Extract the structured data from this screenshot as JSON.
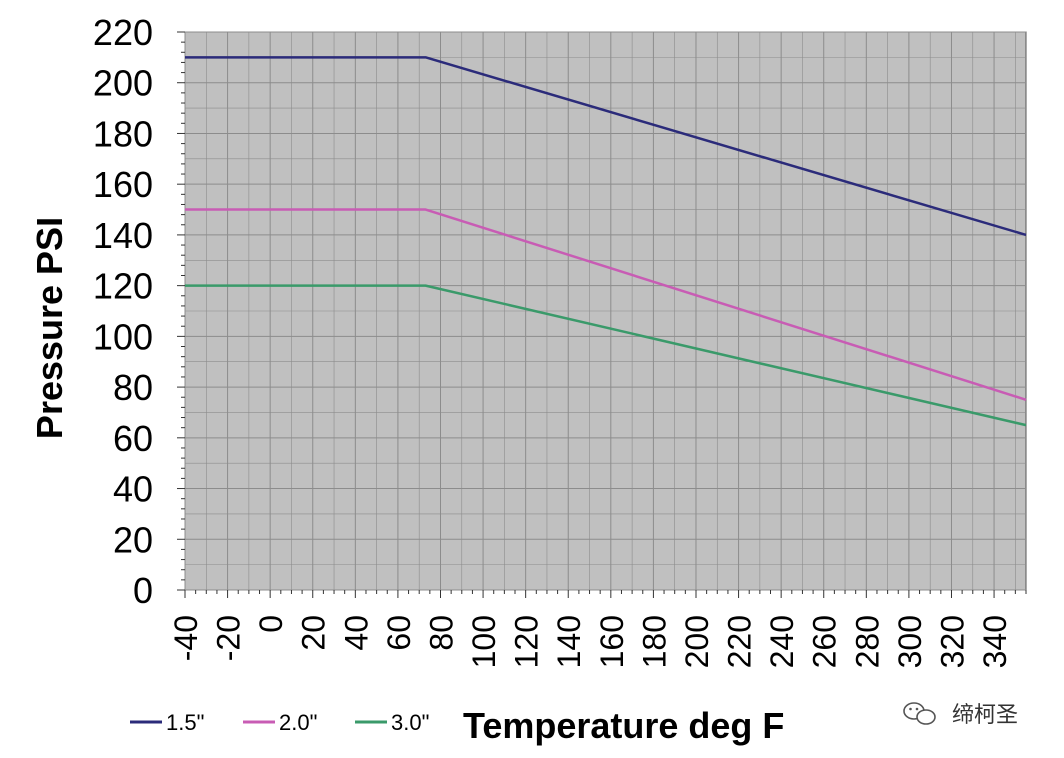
{
  "chart_data": {
    "type": "line",
    "xlabel": "Temperature deg F",
    "ylabel": "Pressure PSI",
    "xlim": [
      -40,
      355
    ],
    "ylim": [
      0,
      220
    ],
    "x_ticks": [
      "-40",
      "-20",
      "0",
      "20",
      "40",
      "60",
      "80",
      "100",
      "120",
      "140",
      "160",
      "180",
      "200",
      "220",
      "240",
      "260",
      "280",
      "300",
      "320",
      "340"
    ],
    "y_ticks": [
      "0",
      "20",
      "40",
      "60",
      "80",
      "100",
      "120",
      "140",
      "160",
      "180",
      "200",
      "220"
    ],
    "grid": true,
    "legend_position": "bottom-left",
    "series": [
      {
        "name": "1.5\"",
        "color": "#2b2b7a",
        "x": [
          -40,
          73,
          355
        ],
        "y": [
          210,
          210,
          140
        ]
      },
      {
        "name": "2.0\"",
        "color": "#c85cb4",
        "x": [
          -40,
          73,
          355
        ],
        "y": [
          150,
          150,
          75
        ]
      },
      {
        "name": "3.0\"",
        "color": "#3a9a6a",
        "x": [
          -40,
          73,
          355
        ],
        "y": [
          120,
          120,
          65
        ]
      }
    ]
  },
  "watermark": {
    "text": "缔柯圣",
    "icon": "wechat-icon"
  },
  "colors": {
    "plot_background": "#c0c0c0",
    "grid": "#8c8c8c"
  }
}
